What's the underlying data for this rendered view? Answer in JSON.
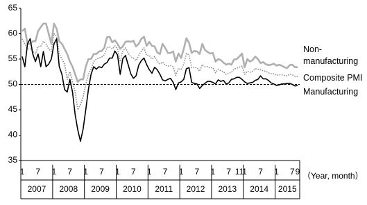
{
  "chart_data": {
    "type": "line",
    "categories": [
      "1",
      null,
      null,
      null,
      null,
      null,
      "7",
      null,
      null,
      null,
      null,
      null,
      "1",
      null,
      null,
      null,
      null,
      null,
      "7",
      null,
      null,
      null,
      null,
      null,
      "1",
      null,
      null,
      null,
      null,
      null,
      "7",
      null,
      null,
      null,
      null,
      null,
      "1",
      null,
      null,
      null,
      null,
      null,
      "7",
      null,
      null,
      null,
      null,
      null,
      "1",
      null,
      null,
      null,
      null,
      null,
      "7",
      null,
      null,
      null,
      null,
      null,
      "1",
      null,
      null,
      null,
      null,
      null,
      "7",
      null,
      null,
      null,
      null,
      null,
      "1",
      null,
      null,
      null,
      null,
      null,
      "7",
      null,
      null,
      null,
      "11",
      null,
      "1",
      null,
      null,
      null,
      null,
      null,
      "7",
      null,
      null,
      null,
      null,
      null,
      "1",
      null,
      null,
      null,
      null,
      null,
      "7",
      null,
      "9"
    ],
    "years": [
      "2007",
      "2008",
      "2009",
      "2010",
      "2011",
      "2012",
      "2013",
      "2014",
      "2015"
    ],
    "x_label": "（Year, month）",
    "ylim": [
      35,
      65
    ],
    "yticks": [
      35,
      40,
      45,
      50,
      55,
      60,
      65
    ],
    "reference_line": 50,
    "series": [
      {
        "name": "Non-\nmanufacturing",
        "color": "#b0b0b0",
        "style": "solid",
        "values": [
          60.5,
          61,
          58,
          58,
          58.5,
          58.5,
          60.5,
          61.3,
          62,
          62,
          60,
          58,
          62,
          61,
          58.5,
          58,
          57,
          56,
          54.5,
          53.5,
          52,
          50.5,
          51,
          51,
          53.5,
          55,
          55,
          56,
          56,
          56.5,
          56.6,
          57.2,
          59.3,
          59.4,
          58.3,
          58.7,
          58,
          57,
          57.5,
          58.4,
          58.5,
          58.4,
          58.6,
          57.5,
          58,
          59,
          59.4,
          57.6,
          58.4,
          57.6,
          57.5,
          56.3,
          56,
          58,
          57.2,
          56.2,
          56.2,
          56.5,
          54.5,
          56.1,
          55.2,
          57,
          59.1,
          58.2,
          56.2,
          56.6,
          56.5,
          56,
          58,
          56.8,
          56.4,
          56.1,
          56.2,
          54.5,
          55,
          54.8,
          54.3,
          53.9,
          54.1,
          53.9,
          54.9,
          55,
          55.5,
          56.1,
          53.4,
          55,
          54.5,
          54.8,
          55.5,
          55,
          54.2,
          54.4,
          54,
          53.8,
          53.9,
          54.1,
          53.7,
          53.9,
          53.7,
          53.4,
          53.2,
          53.8,
          53.9,
          53.4,
          53.4
        ]
      },
      {
        "name": "Composite PMI",
        "color": "#888888",
        "style": "dotted",
        "values": [
          59,
          58,
          57,
          57,
          56.5,
          56,
          57.5,
          57.5,
          58.5,
          58,
          57,
          56.5,
          60,
          59.5,
          56,
          55,
          54,
          51,
          52.5,
          50.5,
          48.5,
          45,
          46,
          47.5,
          50,
          52,
          53,
          54.5,
          55,
          55.2,
          55.4,
          55.8,
          57.2,
          57.4,
          57,
          57.6,
          57,
          54.5,
          56.6,
          57.2,
          56.2,
          55.4,
          55.2,
          54.7,
          55.7,
          56.6,
          57.2,
          55.7,
          55.7,
          55,
          55.5,
          54.6,
          54,
          54.4,
          53.8,
          53.6,
          53.7,
          53.5,
          51.8,
          53.2,
          52.9,
          54,
          56.1,
          55.8,
          53.3,
          53.4,
          53.3,
          52.6,
          53.9,
          53.5,
          53.5,
          53.3,
          53.3,
          52.3,
          53,
          52.7,
          52.5,
          52,
          52.2,
          52.4,
          53,
          53.2,
          53.4,
          53.6,
          52,
          52.6,
          52.4,
          52.6,
          53.1,
          53,
          52.9,
          52.7,
          52.6,
          52.3,
          52.1,
          52.1,
          51.8,
          51.9,
          51.9,
          51.8,
          51.7,
          52,
          51.9,
          51.6,
          51.6
        ]
      },
      {
        "name": "Manufacturing",
        "color": "#000000",
        "style": "solid",
        "values": [
          55.5,
          53.5,
          58,
          59,
          56,
          54.5,
          56,
          53.5,
          56.5,
          53.5,
          54,
          55,
          58,
          59,
          53.5,
          52,
          49,
          48.5,
          51,
          48.5,
          44,
          41,
          38.8,
          41.2,
          45,
          49,
          52,
          53.5,
          53,
          53.5,
          53.3,
          54,
          54.3,
          55.2,
          55.2,
          56.6,
          55.8,
          52,
          55.1,
          55.7,
          53.9,
          52.1,
          51.2,
          51.7,
          53.8,
          54.7,
          55.2,
          53.9,
          52.9,
          52.2,
          53.4,
          52.9,
          52,
          50.9,
          50.7,
          51,
          51.2,
          50.4,
          49,
          50.3,
          50.5,
          51,
          53.1,
          53.3,
          50.4,
          50.2,
          50.1,
          49.2,
          49.8,
          50.2,
          50.6,
          50.6,
          50.4,
          50.1,
          50.9,
          50.6,
          50.8,
          50.1,
          50.3,
          51,
          51.1,
          51.4,
          51.4,
          51,
          50.5,
          50.2,
          50.3,
          50.4,
          50.8,
          51,
          51.7,
          51.1,
          51.1,
          50.8,
          50.3,
          50.1,
          49.8,
          49.9,
          50.1,
          50.1,
          50.2,
          50.2,
          50,
          49.7,
          49.8
        ]
      }
    ]
  }
}
